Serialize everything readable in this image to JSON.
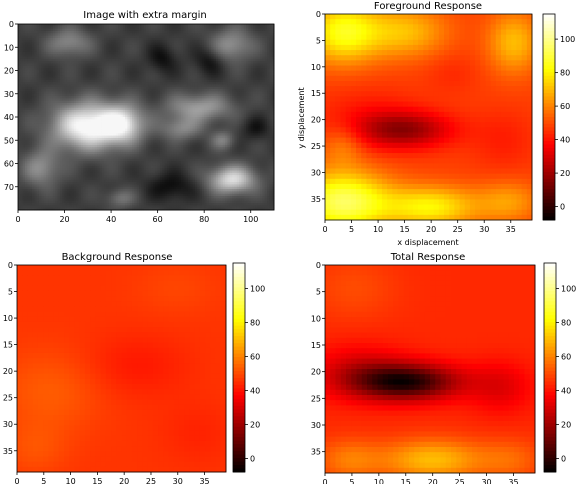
{
  "chart_data": [
    {
      "type": "heatmap",
      "colormap": "gray",
      "title": "Image with extra margin",
      "xlabel": "",
      "ylabel": "",
      "xlim": [
        0,
        110
      ],
      "ylim": [
        0,
        80
      ],
      "x_ticks": [
        "0",
        "20",
        "40",
        "60",
        "80",
        "100"
      ],
      "y_ticks": [
        "0",
        "10",
        "20",
        "30",
        "40",
        "50",
        "60",
        "70"
      ],
      "colorbar": false,
      "blobs": [
        {
          "x": 30,
          "y": 44,
          "rx": 15,
          "ry": 10,
          "v": 0.78
        },
        {
          "x": 45,
          "y": 43,
          "rx": 9,
          "ry": 8,
          "v": 0.55
        },
        {
          "x": 92,
          "y": 67,
          "rx": 10,
          "ry": 6,
          "v": 0.62
        },
        {
          "x": 78,
          "y": 36,
          "rx": 14,
          "ry": 6,
          "v": 0.38
        },
        {
          "x": 70,
          "y": 45,
          "rx": 9,
          "ry": 5,
          "v": 0.28
        },
        {
          "x": 10,
          "y": 62,
          "rx": 8,
          "ry": 8,
          "v": 0.32
        },
        {
          "x": 22,
          "y": 8,
          "rx": 9,
          "ry": 6,
          "v": 0.3
        },
        {
          "x": 92,
          "y": 9,
          "rx": 9,
          "ry": 7,
          "v": 0.33
        },
        {
          "x": 62,
          "y": 15,
          "rx": 6,
          "ry": 6,
          "v": -0.18
        },
        {
          "x": 82,
          "y": 16,
          "rx": 6,
          "ry": 6,
          "v": -0.18
        },
        {
          "x": 66,
          "y": 70,
          "rx": 10,
          "ry": 6,
          "v": -0.2
        },
        {
          "x": 102,
          "y": 45,
          "rx": 6,
          "ry": 5,
          "v": -0.15
        },
        {
          "x": 44,
          "y": 75,
          "rx": 6,
          "ry": 4,
          "v": 0.22
        },
        {
          "x": 88,
          "y": 50,
          "rx": 5,
          "ry": 4,
          "v": 0.25
        }
      ]
    },
    {
      "type": "heatmap",
      "colormap": "hot",
      "title": "Foreground Response",
      "xlabel": "x displacement",
      "ylabel": "y displacement",
      "xlim": [
        0,
        39
      ],
      "ylim": [
        0,
        39
      ],
      "x_ticks": [
        "0",
        "5",
        "10",
        "15",
        "20",
        "25",
        "30",
        "35"
      ],
      "y_ticks": [
        "0",
        "5",
        "10",
        "15",
        "20",
        "25",
        "30",
        "35"
      ],
      "colorbar": true,
      "colorbar_range": [
        -8,
        115
      ],
      "colorbar_ticks": [
        "0",
        "20",
        "40",
        "60",
        "80",
        "100"
      ],
      "base": 48,
      "blobs": [
        {
          "x": 15,
          "y": 22,
          "rx": 9,
          "ry": 3.5,
          "v": -28
        },
        {
          "x": 8,
          "y": 20,
          "rx": 10,
          "ry": 6,
          "v": -8
        },
        {
          "x": 34,
          "y": 24,
          "rx": 6,
          "ry": 6,
          "v": -6
        },
        {
          "x": 3,
          "y": 3,
          "rx": 7,
          "ry": 6,
          "v": 36
        },
        {
          "x": 15,
          "y": 3,
          "rx": 8,
          "ry": 5,
          "v": 22
        },
        {
          "x": 36,
          "y": 5,
          "rx": 5,
          "ry": 6,
          "v": 22
        },
        {
          "x": 3,
          "y": 36,
          "rx": 9,
          "ry": 6,
          "v": 46
        },
        {
          "x": 20,
          "y": 37,
          "rx": 9,
          "ry": 4,
          "v": 32
        },
        {
          "x": 35,
          "y": 36,
          "rx": 6,
          "ry": 4,
          "v": 16
        },
        {
          "x": 24,
          "y": 11,
          "rx": 5,
          "ry": 4,
          "v": -4
        },
        {
          "x": 3,
          "y": 25,
          "rx": 4,
          "ry": 4,
          "v": 12
        }
      ]
    },
    {
      "type": "heatmap",
      "colormap": "hot",
      "title": "Background Response",
      "xlabel": "",
      "ylabel": "",
      "xlim": [
        0,
        39
      ],
      "ylim": [
        0,
        39
      ],
      "x_ticks": [
        "0",
        "5",
        "10",
        "15",
        "20",
        "25",
        "30",
        "35"
      ],
      "y_ticks": [
        "0",
        "5",
        "10",
        "15",
        "20",
        "25",
        "30",
        "35"
      ],
      "colorbar": true,
      "colorbar_range": [
        -8,
        115
      ],
      "colorbar_ticks": [
        "0",
        "20",
        "40",
        "60",
        "80",
        "100"
      ],
      "base": 46,
      "blobs": [
        {
          "x": 6,
          "y": 24,
          "rx": 10,
          "ry": 8,
          "v": 7
        },
        {
          "x": 22,
          "y": 19,
          "rx": 10,
          "ry": 6,
          "v": -5
        },
        {
          "x": 3,
          "y": 35,
          "rx": 6,
          "ry": 5,
          "v": 5
        },
        {
          "x": 34,
          "y": 32,
          "rx": 7,
          "ry": 6,
          "v": -3
        },
        {
          "x": 30,
          "y": 4,
          "rx": 8,
          "ry": 5,
          "v": 3
        }
      ]
    },
    {
      "type": "heatmap",
      "colormap": "hot",
      "title": "Total Response",
      "xlabel": "",
      "ylabel": "",
      "xlim": [
        0,
        39
      ],
      "ylim": [
        0,
        39
      ],
      "x_ticks": [
        "0",
        "5",
        "10",
        "15",
        "20",
        "25",
        "30",
        "35"
      ],
      "y_ticks": [
        "0",
        "5",
        "10",
        "15",
        "20",
        "25",
        "30",
        "35"
      ],
      "colorbar": true,
      "colorbar_range": [
        -8,
        115
      ],
      "colorbar_ticks": [
        "0",
        "20",
        "40",
        "60",
        "80",
        "100"
      ],
      "base": 44,
      "blobs": [
        {
          "x": 15,
          "y": 22,
          "rx": 10,
          "ry": 3.5,
          "v": -46
        },
        {
          "x": 6,
          "y": 20,
          "rx": 9,
          "ry": 5,
          "v": -14
        },
        {
          "x": 33,
          "y": 23,
          "rx": 6,
          "ry": 5,
          "v": -12
        },
        {
          "x": 20,
          "y": 37,
          "rx": 10,
          "ry": 4,
          "v": 26
        },
        {
          "x": 4,
          "y": 37,
          "rx": 6,
          "ry": 4,
          "v": 14
        },
        {
          "x": 35,
          "y": 37,
          "rx": 6,
          "ry": 4,
          "v": 10
        },
        {
          "x": 5,
          "y": 4,
          "rx": 8,
          "ry": 6,
          "v": 6
        }
      ]
    }
  ]
}
